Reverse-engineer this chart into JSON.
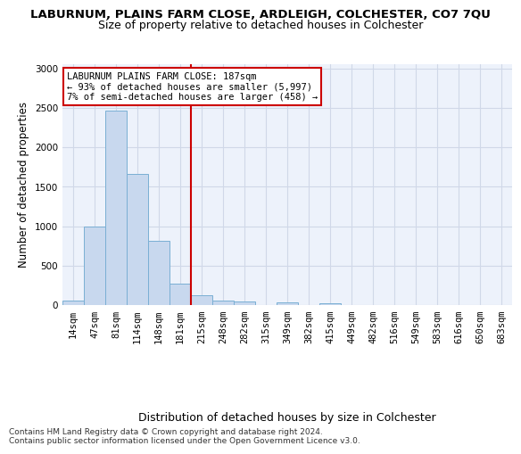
{
  "title": "LABURNUM, PLAINS FARM CLOSE, ARDLEIGH, COLCHESTER, CO7 7QU",
  "subtitle": "Size of property relative to detached houses in Colchester",
  "xlabel": "Distribution of detached houses by size in Colchester",
  "ylabel": "Number of detached properties",
  "bar_labels": [
    "14sqm",
    "47sqm",
    "81sqm",
    "114sqm",
    "148sqm",
    "181sqm",
    "215sqm",
    "248sqm",
    "282sqm",
    "315sqm",
    "349sqm",
    "382sqm",
    "415sqm",
    "449sqm",
    "482sqm",
    "516sqm",
    "549sqm",
    "583sqm",
    "616sqm",
    "650sqm",
    "683sqm"
  ],
  "bar_values": [
    60,
    1000,
    2460,
    1660,
    820,
    275,
    130,
    55,
    45,
    0,
    30,
    0,
    25,
    0,
    0,
    0,
    0,
    0,
    0,
    0,
    0
  ],
  "bar_color": "#c8d8ee",
  "bar_edge_color": "#7aafd4",
  "vline_pos": 5.5,
  "vline_color": "#cc0000",
  "annotation_text": "LABURNUM PLAINS FARM CLOSE: 187sqm\n← 93% of detached houses are smaller (5,997)\n7% of semi-detached houses are larger (458) →",
  "annotation_box_color": "#cc0000",
  "ylim": [
    0,
    3050
  ],
  "yticks": [
    0,
    500,
    1000,
    1500,
    2000,
    2500,
    3000
  ],
  "grid_color": "#d0d8e8",
  "bg_color": "#edf2fb",
  "footer": "Contains HM Land Registry data © Crown copyright and database right 2024.\nContains public sector information licensed under the Open Government Licence v3.0.",
  "title_fontsize": 9.5,
  "subtitle_fontsize": 9,
  "xlabel_fontsize": 9,
  "ylabel_fontsize": 8.5,
  "footer_fontsize": 6.5,
  "tick_fontsize": 7.5,
  "annot_fontsize": 7.5
}
